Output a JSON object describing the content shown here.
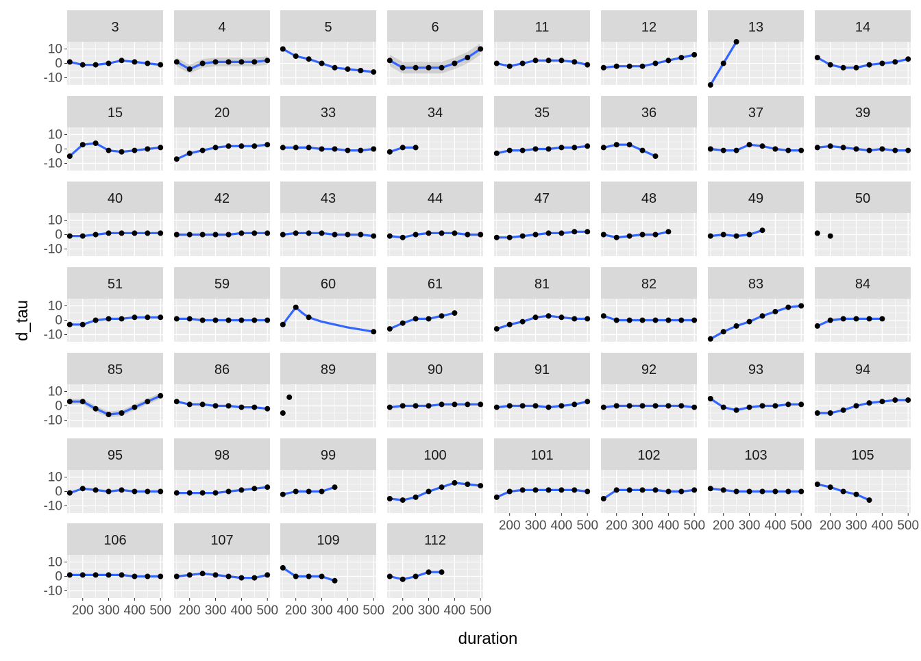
{
  "chart_data": {
    "type": "scatter",
    "facet_by": "panel",
    "xlabel": "duration",
    "ylabel": "d_tau",
    "xlim": [
      140,
      510
    ],
    "ylim": [
      -15,
      15
    ],
    "x_ticks": [
      200,
      300,
      400,
      500
    ],
    "x_tick_labels": [
      "200",
      "300",
      "400",
      "500"
    ],
    "y_ticks": [
      -10,
      0,
      10
    ],
    "y_tick_labels": [
      "-10",
      "0",
      "10"
    ],
    "grid": true,
    "smooth": "loess with confidence band",
    "colors": {
      "points": "#000000",
      "smooth_line": "#3366FF",
      "band": "#999999",
      "panel_bg": "#EBEBEB",
      "strip_bg": "#D9D9D9"
    },
    "panels": [
      {
        "label": "3",
        "x": [
          150,
          200,
          250,
          300,
          350,
          400,
          450,
          500
        ],
        "y": [
          1,
          -1,
          -1,
          0,
          2,
          1,
          0,
          -1
        ]
      },
      {
        "label": "4",
        "x": [
          150,
          200,
          250,
          300,
          350,
          400,
          450,
          500
        ],
        "y": [
          1,
          -4,
          0,
          1,
          1,
          1,
          1,
          2
        ],
        "band": 3
      },
      {
        "label": "5",
        "x": [
          150,
          200,
          250,
          300,
          350,
          400,
          450,
          500
        ],
        "y": [
          10,
          5,
          3,
          0,
          -3,
          -4,
          -5,
          -6
        ]
      },
      {
        "label": "6",
        "x": [
          150,
          200,
          250,
          300,
          350,
          400,
          450,
          500
        ],
        "y": [
          2,
          -3,
          -3,
          -3,
          -3,
          0,
          4,
          10
        ],
        "band": 4
      },
      {
        "label": "11",
        "x": [
          150,
          200,
          250,
          300,
          350,
          400,
          450,
          500
        ],
        "y": [
          0,
          -2,
          0,
          2,
          2,
          2,
          1,
          -1
        ]
      },
      {
        "label": "12",
        "x": [
          150,
          200,
          250,
          300,
          350,
          400,
          450,
          500
        ],
        "y": [
          -3,
          -2,
          -2,
          -2,
          0,
          2,
          4,
          6
        ]
      },
      {
        "label": "13",
        "x": [
          150,
          200,
          250
        ],
        "y": [
          -15,
          0,
          15
        ]
      },
      {
        "label": "14",
        "x": [
          150,
          200,
          250,
          300,
          350,
          400,
          450,
          500
        ],
        "y": [
          4,
          -1,
          -3,
          -3,
          -1,
          0,
          1,
          3
        ]
      },
      {
        "label": "15",
        "x": [
          150,
          200,
          250,
          300,
          350,
          400,
          450,
          500
        ],
        "y": [
          -5,
          3,
          4,
          -1,
          -2,
          -1,
          0,
          1
        ]
      },
      {
        "label": "20",
        "x": [
          150,
          200,
          250,
          300,
          350,
          400,
          450,
          500
        ],
        "y": [
          -7,
          -3,
          -1,
          1,
          2,
          2,
          2,
          3
        ]
      },
      {
        "label": "33",
        "x": [
          150,
          200,
          250,
          300,
          350,
          400,
          450,
          500
        ],
        "y": [
          1,
          1,
          1,
          0,
          0,
          -1,
          -1,
          0
        ]
      },
      {
        "label": "34",
        "x": [
          150,
          200,
          250
        ],
        "y": [
          -2,
          1,
          1
        ]
      },
      {
        "label": "35",
        "x": [
          150,
          200,
          250,
          300,
          350,
          400,
          450,
          500
        ],
        "y": [
          -3,
          -1,
          -1,
          0,
          0,
          1,
          1,
          2
        ]
      },
      {
        "label": "36",
        "x": [
          150,
          200,
          250,
          300,
          350
        ],
        "y": [
          1,
          3,
          3,
          -1,
          -5
        ]
      },
      {
        "label": "37",
        "x": [
          150,
          200,
          250,
          300,
          350,
          400,
          450,
          500
        ],
        "y": [
          0,
          -1,
          -1,
          3,
          2,
          0,
          -1,
          -1
        ]
      },
      {
        "label": "39",
        "x": [
          150,
          200,
          250,
          300,
          350,
          400,
          450,
          500
        ],
        "y": [
          1,
          2,
          1,
          0,
          -1,
          0,
          -1,
          -1
        ]
      },
      {
        "label": "40",
        "x": [
          150,
          200,
          250,
          300,
          350,
          400,
          450,
          500
        ],
        "y": [
          -1,
          -1,
          0,
          1,
          1,
          1,
          1,
          1
        ]
      },
      {
        "label": "42",
        "x": [
          150,
          200,
          250,
          300,
          350,
          400,
          450,
          500
        ],
        "y": [
          0,
          0,
          0,
          0,
          0,
          1,
          1,
          1
        ]
      },
      {
        "label": "43",
        "x": [
          150,
          200,
          250,
          300,
          350,
          400,
          450,
          500
        ],
        "y": [
          0,
          1,
          1,
          1,
          0,
          0,
          0,
          -1
        ]
      },
      {
        "label": "44",
        "x": [
          150,
          200,
          250,
          300,
          350,
          400,
          450,
          500
        ],
        "y": [
          -1,
          -2,
          0,
          1,
          1,
          1,
          0,
          0
        ]
      },
      {
        "label": "47",
        "x": [
          150,
          200,
          250,
          300,
          350,
          400,
          450,
          500
        ],
        "y": [
          -2,
          -2,
          -1,
          0,
          1,
          1,
          2,
          2
        ]
      },
      {
        "label": "48",
        "x": [
          150,
          200,
          250,
          300,
          350,
          400
        ],
        "y": [
          0,
          -2,
          -1,
          0,
          0,
          2
        ]
      },
      {
        "label": "49",
        "x": [
          150,
          200,
          250,
          300,
          350
        ],
        "y": [
          -1,
          0,
          -1,
          0,
          3
        ]
      },
      {
        "label": "50",
        "x": [
          150,
          200
        ],
        "y": [
          1,
          -1
        ],
        "no_line": true
      },
      {
        "label": "51",
        "x": [
          150,
          200,
          250,
          300,
          350,
          400,
          450,
          500
        ],
        "y": [
          -3,
          -3,
          0,
          1,
          1,
          2,
          2,
          2
        ]
      },
      {
        "label": "59",
        "x": [
          150,
          200,
          250,
          300,
          350,
          400,
          450,
          500
        ],
        "y": [
          1,
          1,
          0,
          0,
          0,
          0,
          0,
          0
        ]
      },
      {
        "label": "60",
        "x": [
          150,
          200,
          250,
          500
        ],
        "y": [
          -3,
          9,
          2,
          -8
        ],
        "fit": [
          [
            150,
            -3
          ],
          [
            175,
            3
          ],
          [
            200,
            9
          ],
          [
            225,
            5
          ],
          [
            250,
            2
          ],
          [
            300,
            -1
          ],
          [
            350,
            -3
          ],
          [
            400,
            -5
          ],
          [
            450,
            -6.5
          ],
          [
            500,
            -8
          ]
        ]
      },
      {
        "label": "61",
        "x": [
          150,
          200,
          250,
          300,
          350,
          400
        ],
        "y": [
          -6,
          -2,
          1,
          1,
          3,
          5
        ]
      },
      {
        "label": "81",
        "x": [
          150,
          200,
          250,
          300,
          350,
          400,
          450,
          500
        ],
        "y": [
          -6,
          -3,
          -1,
          2,
          3,
          2,
          1,
          1
        ]
      },
      {
        "label": "82",
        "x": [
          150,
          200,
          250,
          300,
          350,
          400,
          450,
          500
        ],
        "y": [
          3,
          0,
          0,
          0,
          0,
          0,
          0,
          0
        ]
      },
      {
        "label": "83",
        "x": [
          150,
          200,
          250,
          300,
          350,
          400,
          450,
          500
        ],
        "y": [
          -13,
          -8,
          -4,
          -1,
          3,
          6,
          9,
          10
        ]
      },
      {
        "label": "84",
        "x": [
          150,
          200,
          250,
          300,
          350,
          400
        ],
        "y": [
          -4,
          0,
          1,
          1,
          1,
          1
        ]
      },
      {
        "label": "85",
        "x": [
          150,
          200,
          250,
          300,
          350,
          400,
          450,
          500
        ],
        "y": [
          3,
          3,
          -2,
          -6,
          -5,
          -1,
          3,
          7
        ],
        "band": 2
      },
      {
        "label": "86",
        "x": [
          150,
          200,
          250,
          300,
          350,
          400,
          450,
          500
        ],
        "y": [
          3,
          1,
          1,
          0,
          0,
          -1,
          -1,
          -2
        ]
      },
      {
        "label": "89",
        "x": [
          150,
          175
        ],
        "y": [
          -5,
          6
        ],
        "no_line": true
      },
      {
        "label": "90",
        "x": [
          150,
          200,
          250,
          300,
          350,
          400,
          450,
          500
        ],
        "y": [
          -1,
          0,
          0,
          0,
          1,
          1,
          1,
          1
        ]
      },
      {
        "label": "91",
        "x": [
          150,
          200,
          250,
          300,
          350,
          400,
          450,
          500
        ],
        "y": [
          -1,
          0,
          0,
          0,
          -1,
          0,
          1,
          3
        ]
      },
      {
        "label": "92",
        "x": [
          150,
          200,
          250,
          300,
          350,
          400,
          450,
          500
        ],
        "y": [
          -1,
          0,
          0,
          0,
          0,
          0,
          0,
          -1
        ]
      },
      {
        "label": "93",
        "x": [
          150,
          200,
          250,
          300,
          350,
          400,
          450,
          500
        ],
        "y": [
          5,
          -1,
          -3,
          -1,
          0,
          0,
          1,
          1
        ]
      },
      {
        "label": "94",
        "x": [
          150,
          200,
          250,
          300,
          350,
          400,
          450,
          500
        ],
        "y": [
          -5,
          -5,
          -3,
          0,
          2,
          3,
          4,
          4
        ]
      },
      {
        "label": "95",
        "x": [
          150,
          200,
          250,
          300,
          350,
          400,
          450,
          500
        ],
        "y": [
          -1,
          2,
          1,
          0,
          1,
          0,
          0,
          0
        ]
      },
      {
        "label": "98",
        "x": [
          150,
          200,
          250,
          300,
          350,
          400,
          450,
          500
        ],
        "y": [
          -1,
          -1,
          -1,
          -1,
          0,
          1,
          2,
          3
        ]
      },
      {
        "label": "99",
        "x": [
          150,
          200,
          250,
          300,
          350
        ],
        "y": [
          -2,
          0,
          0,
          0,
          3
        ]
      },
      {
        "label": "100",
        "x": [
          150,
          200,
          250,
          300,
          350,
          400,
          450,
          500
        ],
        "y": [
          -5,
          -6,
          -4,
          0,
          3,
          6,
          5,
          4
        ]
      },
      {
        "label": "101",
        "x": [
          150,
          200,
          250,
          300,
          350,
          400,
          450,
          500
        ],
        "y": [
          -4,
          0,
          1,
          1,
          1,
          1,
          1,
          0
        ]
      },
      {
        "label": "102",
        "x": [
          150,
          200,
          250,
          300,
          350,
          400,
          450,
          500
        ],
        "y": [
          -5,
          1,
          1,
          1,
          1,
          0,
          0,
          1
        ]
      },
      {
        "label": "103",
        "x": [
          150,
          200,
          250,
          300,
          350,
          400,
          450,
          500
        ],
        "y": [
          2,
          1,
          0,
          0,
          0,
          0,
          0,
          0
        ]
      },
      {
        "label": "105",
        "x": [
          150,
          200,
          250,
          300,
          350
        ],
        "y": [
          5,
          3,
          0,
          -2,
          -6
        ]
      },
      {
        "label": "106",
        "x": [
          150,
          200,
          250,
          300,
          350,
          400,
          450,
          500
        ],
        "y": [
          1,
          1,
          1,
          1,
          1,
          0,
          0,
          0
        ]
      },
      {
        "label": "107",
        "x": [
          150,
          200,
          250,
          300,
          350,
          400,
          450,
          500
        ],
        "y": [
          0,
          1,
          2,
          1,
          0,
          -1,
          -1,
          1
        ]
      },
      {
        "label": "109",
        "x": [
          150,
          200,
          250,
          300,
          350
        ],
        "y": [
          6,
          0,
          0,
          0,
          -3
        ]
      },
      {
        "label": "112",
        "x": [
          150,
          200,
          250,
          300,
          350
        ],
        "y": [
          0,
          -2,
          0,
          3,
          3
        ]
      }
    ]
  }
}
